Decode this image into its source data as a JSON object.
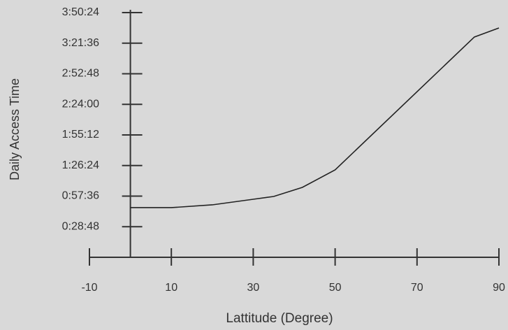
{
  "chart_data": {
    "type": "line",
    "x_label": "Lattitude (Degree)",
    "y_label": "Daily Access Time",
    "x": [
      0,
      10,
      20,
      30,
      35,
      42,
      50,
      84,
      90
    ],
    "series": [
      {
        "color": "#222222",
        "values": [
          2805,
          2805,
          2963,
          3279,
          3437,
          3950,
          4938,
          12443,
          12956
        ]
      }
    ],
    "xlim": [
      -10,
      90
    ],
    "xticks": [
      -10,
      10,
      30,
      50,
      70,
      90
    ],
    "ylim": [
      0,
      13824
    ],
    "yticks": [
      {
        "value": 1728,
        "label": "0:28:48"
      },
      {
        "value": 3456,
        "label": "0:57:36"
      },
      {
        "value": 5184,
        "label": "1:26:24"
      },
      {
        "value": 6912,
        "label": "1:55:12"
      },
      {
        "value": 8640,
        "label": "2:24:00"
      },
      {
        "value": 10368,
        "label": "2:52:48"
      },
      {
        "value": 12096,
        "label": "3:21:36"
      },
      {
        "value": 13824,
        "label": "3:50:24"
      }
    ]
  }
}
